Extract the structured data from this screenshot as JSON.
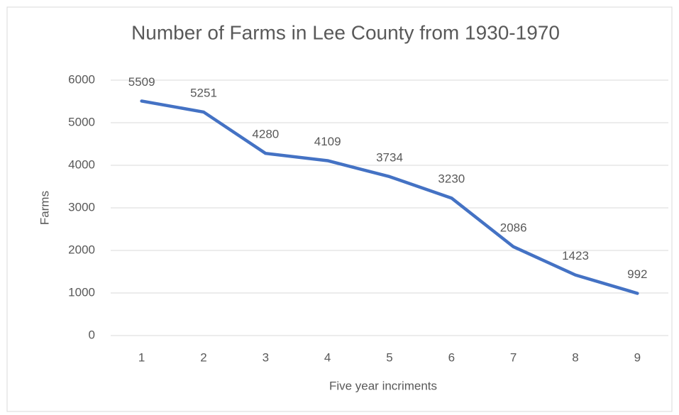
{
  "chart_data": {
    "type": "line",
    "title": "Number of Farms in Lee County from 1930-1970",
    "x_label": "Five year incriments",
    "y_label": "Farms",
    "categories": [
      1,
      2,
      3,
      4,
      5,
      6,
      7,
      8,
      9
    ],
    "values": [
      5509,
      5251,
      4280,
      4109,
      3734,
      3230,
      2086,
      1423,
      992
    ],
    "color": "#4472c4",
    "ylim": [
      0,
      6000
    ],
    "yticks": [
      0,
      1000,
      2000,
      3000,
      4000,
      5000,
      6000
    ],
    "grid": true
  }
}
